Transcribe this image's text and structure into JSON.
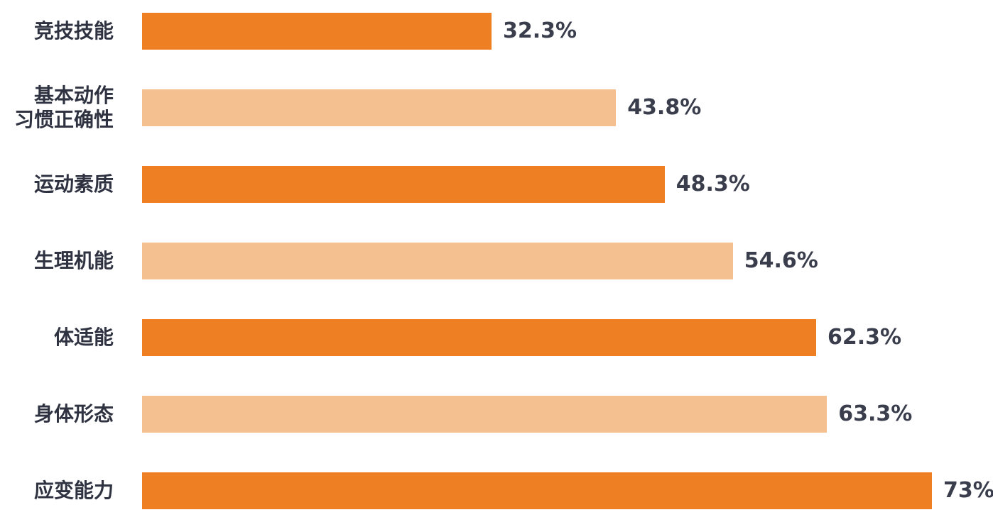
{
  "chart_data": {
    "type": "bar",
    "orientation": "horizontal",
    "categories": [
      "竞技技能",
      "基本动作\n习惯正确性",
      "运动素质",
      "生理机能",
      "体适能",
      "身体形态",
      "应变能力"
    ],
    "values": [
      32.3,
      43.8,
      48.3,
      54.6,
      62.3,
      63.3,
      73
    ],
    "value_labels": [
      "32.3%",
      "43.8%",
      "48.3%",
      "54.6%",
      "62.3%",
      "63.3%",
      "73%"
    ],
    "unit": "%",
    "xlim": [
      0,
      73
    ],
    "grid": false,
    "legend": "none",
    "colors": [
      "#ee7f22",
      "#f5c090",
      "#ee7f22",
      "#f5c090",
      "#ee7f22",
      "#f5c090",
      "#ee7f22"
    ]
  }
}
